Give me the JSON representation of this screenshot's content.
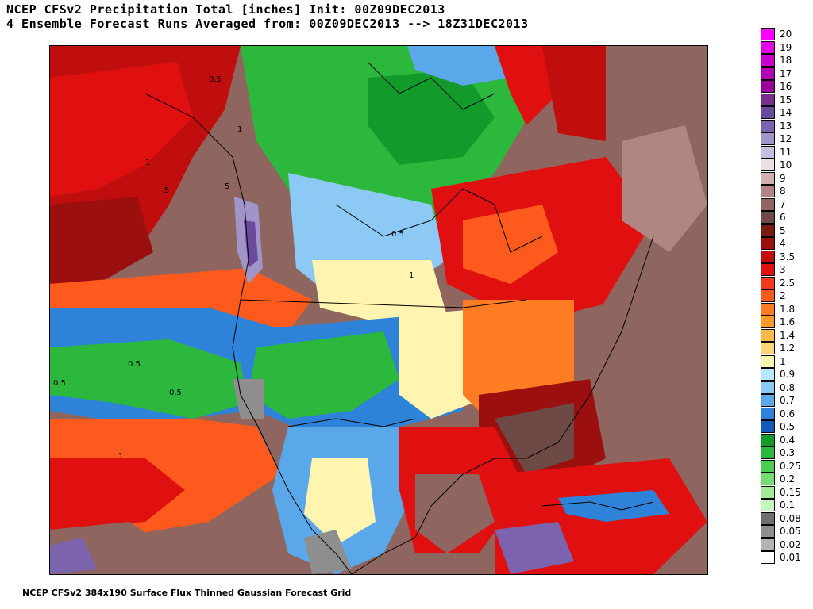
{
  "header": {
    "line1": "NCEP CFSv2 Precipitation Total [inches] Init: 00Z09DEC2013",
    "line2": "4 Ensemble Forecast Runs Averaged from: 00Z09DEC2013 --> 18Z31DEC2013"
  },
  "footer": "NCEP CFSv2 384x190 Surface Flux Thinned Gaussian Forecast Grid",
  "legend": [
    {
      "label": "20",
      "color": "#ff00ff"
    },
    {
      "label": "19",
      "color": "#e600e6"
    },
    {
      "label": "18",
      "color": "#cc00cc"
    },
    {
      "label": "17",
      "color": "#b300b3"
    },
    {
      "label": "16",
      "color": "#990099"
    },
    {
      "label": "15",
      "color": "#7a2f8a"
    },
    {
      "label": "14",
      "color": "#6a4a9c"
    },
    {
      "label": "13",
      "color": "#7b63ad"
    },
    {
      "label": "12",
      "color": "#a194c8"
    },
    {
      "label": "11",
      "color": "#c6bedf"
    },
    {
      "label": "10",
      "color": "#ede0e3"
    },
    {
      "label": "9",
      "color": "#d2b0ad"
    },
    {
      "label": "8",
      "color": "#b08682"
    },
    {
      "label": "7",
      "color": "#8f665f"
    },
    {
      "label": "6",
      "color": "#6e4a44"
    },
    {
      "label": "5",
      "color": "#7a1a14"
    },
    {
      "label": "4",
      "color": "#9c0f0f"
    },
    {
      "label": "3.5",
      "color": "#c00d0d"
    },
    {
      "label": "3",
      "color": "#e01010"
    },
    {
      "label": "2.5",
      "color": "#f03a1a"
    },
    {
      "label": "2",
      "color": "#ff5a1e"
    },
    {
      "label": "1.8",
      "color": "#ff7c22"
    },
    {
      "label": "1.6",
      "color": "#ff9a2a"
    },
    {
      "label": "1.4",
      "color": "#ffb84a"
    },
    {
      "label": "1.2",
      "color": "#ffd67a"
    },
    {
      "label": "1",
      "color": "#fff4b0"
    },
    {
      "label": "0.9",
      "color": "#b8e8ff"
    },
    {
      "label": "0.8",
      "color": "#8ccaf5"
    },
    {
      "label": "0.7",
      "color": "#5aa8ea"
    },
    {
      "label": "0.6",
      "color": "#2e82d8"
    },
    {
      "label": "0.5",
      "color": "#1458b8"
    },
    {
      "label": "0.4",
      "color": "#129a2a"
    },
    {
      "label": "0.3",
      "color": "#2cb83c"
    },
    {
      "label": "0.25",
      "color": "#4ccc52"
    },
    {
      "label": "0.2",
      "color": "#74dc72"
    },
    {
      "label": "0.15",
      "color": "#a0ea98"
    },
    {
      "label": "0.1",
      "color": "#c8f4c0"
    },
    {
      "label": "0.08",
      "color": "#6e6e6e"
    },
    {
      "label": "0.05",
      "color": "#8e8e8e"
    },
    {
      "label": "0.02",
      "color": "#b4b4b4"
    },
    {
      "label": "0.01",
      "color": "#ffffff"
    }
  ],
  "contour_labels": [
    "0.5",
    "1",
    "5",
    "0.5",
    "1",
    "5",
    "0.5",
    "1",
    "0.5",
    "0.5",
    "1"
  ],
  "map_colors": {
    "ocean_base": "#8f665f",
    "red": "#e01010",
    "darkred": "#9c0f0f",
    "orange": "#ff5a1e",
    "yellow": "#fff4b0",
    "lightblue": "#8ccaf5",
    "blue": "#2e82d8",
    "green": "#2cb83c",
    "lightgreen": "#a0ea98",
    "gray": "#8e8e8e",
    "brown": "#6e4a44",
    "purple": "#7b63ad"
  }
}
